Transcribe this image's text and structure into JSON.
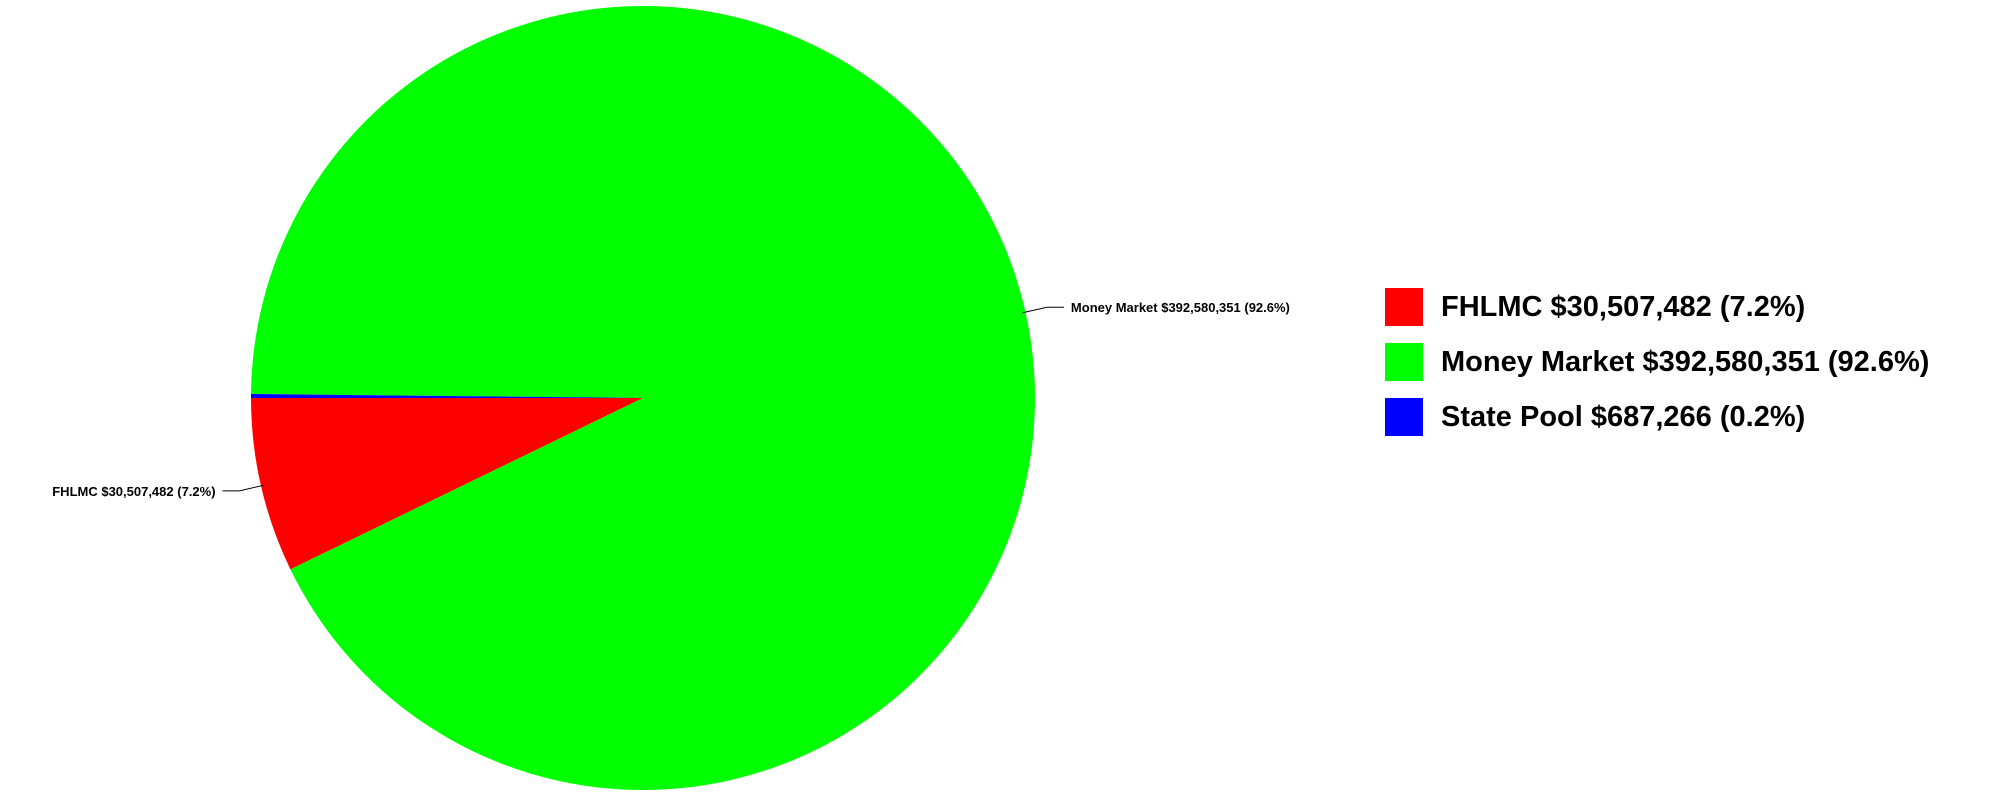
{
  "chart_data": {
    "type": "pie",
    "title": "",
    "start_angle_degrees": 180,
    "direction": "counterclockwise",
    "legend_position": "right",
    "slices": [
      {
        "name": "FHLMC",
        "value": 30507482,
        "percent": 7.2,
        "color": "#ff0000",
        "label": "FHLMC $30,507,482 (7.2%)"
      },
      {
        "name": "Money Market",
        "value": 392580351,
        "percent": 92.6,
        "color": "#00ff00",
        "label": "Money Market $392,580,351 (92.6%)"
      },
      {
        "name": "State Pool",
        "value": 687266,
        "percent": 0.2,
        "color": "#0000ff",
        "label": "State Pool $687,266 (0.2%)"
      }
    ]
  }
}
